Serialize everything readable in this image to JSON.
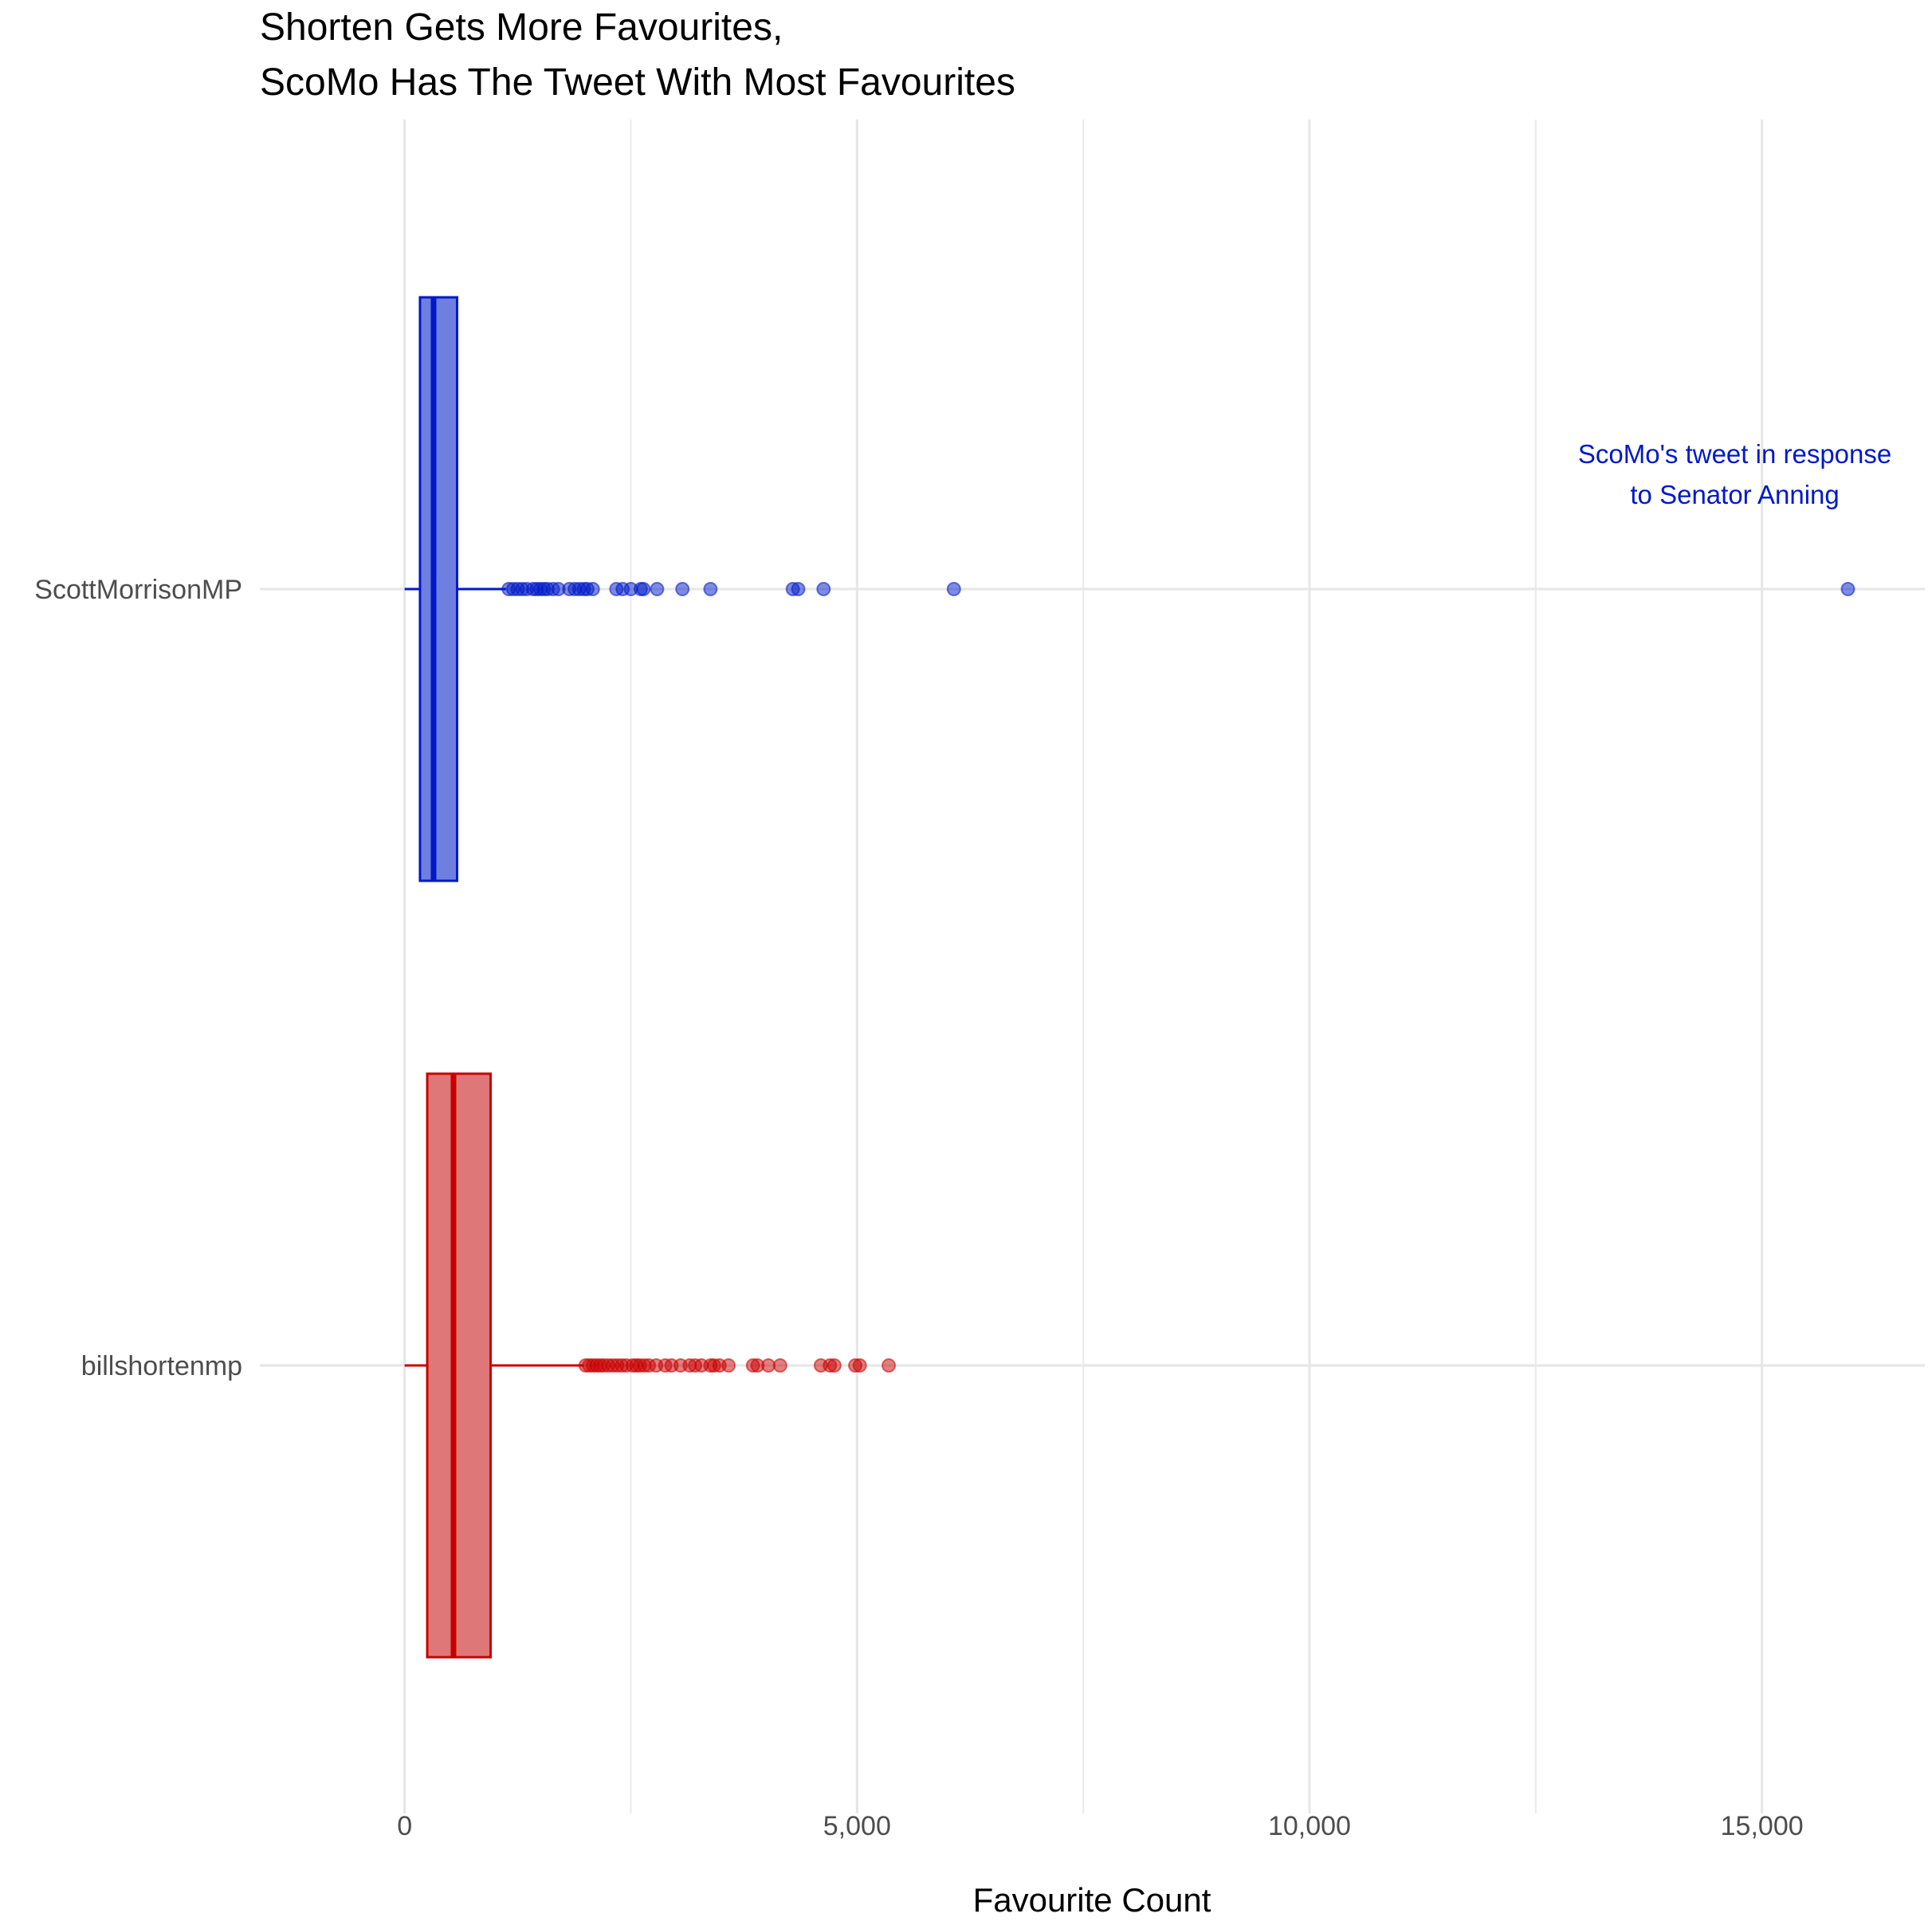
{
  "chart_data": {
    "type": "boxplot",
    "title": [
      "Shorten Gets More Favourites,",
      "ScoMo Has The Tweet With Most Favourites"
    ],
    "xlabel": "Favourite Count",
    "ylabel": "",
    "xlim": [
      -1600,
      16800
    ],
    "xticks": [
      0,
      5000,
      10000,
      15000
    ],
    "xtick_labels": [
      "0",
      "5,000",
      "10,000",
      "15,000"
    ],
    "minor_gridlines": [
      2500,
      7500,
      12500
    ],
    "grid": true,
    "legend": "none",
    "categories": [
      "ScottMorrisonMP",
      "billshortenmp"
    ],
    "series": [
      {
        "category": "ScottMorrisonMP",
        "color": "#0019c8",
        "fill": "#6f7fe0",
        "min": 0,
        "q1": 170,
        "median": 320,
        "q3": 580,
        "whisker_high": 1120,
        "outliers": [
          1150,
          1200,
          1250,
          1300,
          1350,
          1420,
          1460,
          1500,
          1540,
          1580,
          1640,
          1700,
          1820,
          1880,
          1930,
          1980,
          2020,
          2080,
          2340,
          2410,
          2500,
          2610,
          2640,
          2790,
          3070,
          3380,
          4290,
          4350,
          4630,
          6070,
          15950
        ]
      },
      {
        "category": "billshortenmp",
        "color": "#c80000",
        "fill": "#de7878",
        "min": 0,
        "q1": 250,
        "median": 540,
        "q3": 950,
        "whisker_high": 1980,
        "outliers": [
          2000,
          2040,
          2080,
          2120,
          2160,
          2200,
          2250,
          2300,
          2350,
          2400,
          2450,
          2520,
          2560,
          2600,
          2650,
          2700,
          2780,
          2880,
          2950,
          3050,
          3150,
          3210,
          3280,
          3380,
          3420,
          3480,
          3580,
          3850,
          3900,
          4020,
          4150,
          4600,
          4700,
          4750,
          4980,
          5030,
          5350
        ]
      }
    ],
    "annotations": [
      {
        "lines": [
          "ScoMo's tweet in response",
          "to Senator Anning"
        ],
        "x": 14700,
        "color": "#0019c8"
      }
    ]
  }
}
